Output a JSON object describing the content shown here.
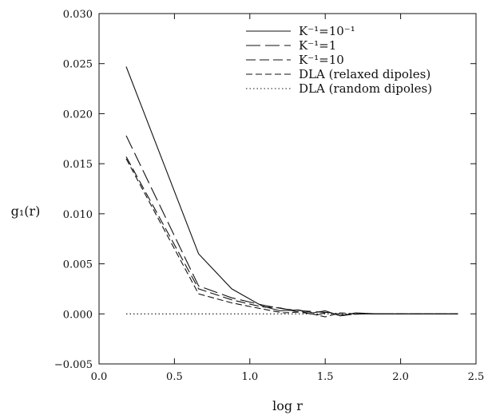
{
  "chart_data": {
    "type": "line",
    "xlabel": "log r",
    "ylabel": "g₁(r)",
    "xlim": [
      0.0,
      2.5
    ],
    "ylim": [
      -0.005,
      0.03
    ],
    "x_ticks": [
      "0.0",
      "0.5",
      "1.0",
      "1.5",
      "2.0",
      "2.5"
    ],
    "y_ticks": [
      "−0.005",
      "0.000",
      "0.005",
      "0.010",
      "0.015",
      "0.020",
      "0.025",
      "0.030"
    ],
    "x_tick_values": [
      0.0,
      0.5,
      1.0,
      1.5,
      2.0,
      2.5
    ],
    "y_tick_values": [
      -0.005,
      0.0,
      0.005,
      0.01,
      0.015,
      0.02,
      0.025,
      0.03
    ],
    "grid": false,
    "legend_position": "top-right",
    "series": [
      {
        "name": "K⁻¹=10⁻¹",
        "dash": "solid",
        "x": [
          0.18,
          0.66,
          0.88,
          1.08,
          1.2,
          1.32,
          1.42,
          1.5,
          1.6,
          1.7,
          1.85,
          2.0,
          2.2,
          2.38
        ],
        "y": [
          0.0247,
          0.006,
          0.0025,
          0.0008,
          0.0003,
          0.0004,
          0.0001,
          0.0003,
          -0.0002,
          0.0001,
          0.0,
          0.0,
          0.0,
          0.0
        ]
      },
      {
        "name": "K⁻¹=1",
        "dash": "long",
        "x": [
          0.18,
          0.66,
          0.88,
          1.08,
          1.22,
          1.35,
          1.45,
          1.55,
          1.62,
          1.75,
          1.9,
          2.1,
          2.38
        ],
        "y": [
          0.0178,
          0.0028,
          0.0016,
          0.0009,
          0.0005,
          0.0003,
          0.0002,
          0.0001,
          -0.0001,
          0.0,
          0.0,
          0.0,
          0.0
        ]
      },
      {
        "name": "K⁻¹=10",
        "dash": "medium",
        "x": [
          0.18,
          0.66,
          0.88,
          1.08,
          1.2,
          1.32,
          1.45,
          1.52,
          1.6,
          1.7,
          1.85,
          2.05,
          2.38
        ],
        "y": [
          0.0157,
          0.0025,
          0.0014,
          0.0007,
          0.0006,
          0.0002,
          -0.0001,
          0.0002,
          -0.0002,
          0.0,
          0.0,
          0.0,
          0.0
        ]
      },
      {
        "name": "DLA (relaxed dipoles)",
        "dash": "short",
        "x": [
          0.18,
          0.66,
          0.88,
          1.08,
          1.22,
          1.35,
          1.5,
          1.6,
          1.7,
          1.85,
          2.05,
          2.38
        ],
        "y": [
          0.0155,
          0.002,
          0.0011,
          0.0005,
          0.0001,
          0.0002,
          -0.0003,
          0.0001,
          0.0,
          0.0,
          0.0,
          0.0
        ]
      },
      {
        "name": "DLA (random dipoles)",
        "dash": "dotted",
        "x": [
          0.18,
          0.66,
          1.0,
          1.5,
          2.0,
          2.38
        ],
        "y": [
          0.0,
          0.0,
          0.0,
          0.0,
          0.0,
          0.0
        ]
      }
    ]
  }
}
